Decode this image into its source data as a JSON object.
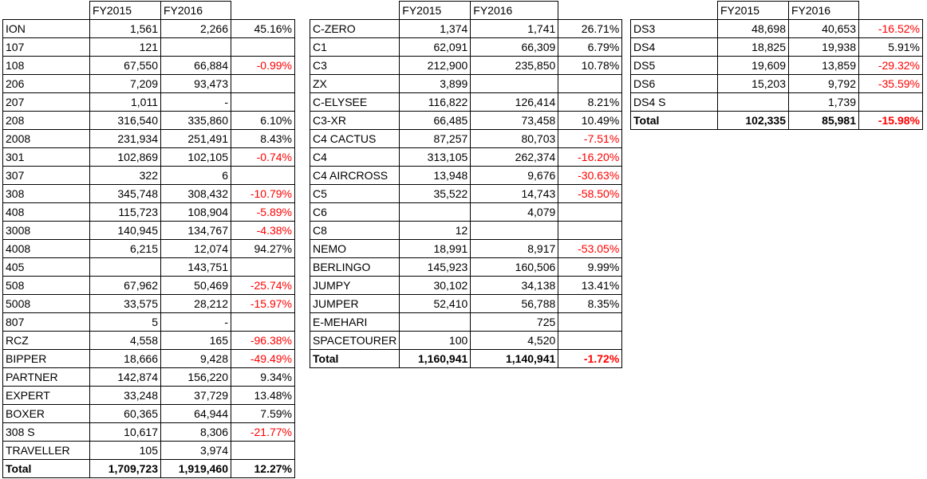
{
  "colors": {
    "negative": "#ff0000",
    "text": "#000000",
    "border": "#000000"
  },
  "headers": {
    "fy2015": "FY2015",
    "fy2016": "FY2016"
  },
  "peugeot": {
    "rows": [
      {
        "model": "ION",
        "fy2015": "1,561",
        "fy2016": "2,266",
        "change": "45.16%",
        "neg": false
      },
      {
        "model": "107",
        "fy2015": "121",
        "fy2016": "",
        "change": "",
        "neg": false
      },
      {
        "model": "108",
        "fy2015": "67,550",
        "fy2016": "66,884",
        "change": "-0.99%",
        "neg": true
      },
      {
        "model": "206",
        "fy2015": "7,209",
        "fy2016": "93,473",
        "change": "",
        "neg": false
      },
      {
        "model": "207",
        "fy2015": "1,011",
        "fy2016": "-",
        "change": "",
        "neg": false
      },
      {
        "model": "208",
        "fy2015": "316,540",
        "fy2016": "335,860",
        "change": "6.10%",
        "neg": false
      },
      {
        "model": "2008",
        "fy2015": "231,934",
        "fy2016": "251,491",
        "change": "8.43%",
        "neg": false
      },
      {
        "model": "301",
        "fy2015": "102,869",
        "fy2016": "102,105",
        "change": "-0.74%",
        "neg": true
      },
      {
        "model": "307",
        "fy2015": "322",
        "fy2016": "6",
        "change": "",
        "neg": false
      },
      {
        "model": "308",
        "fy2015": "345,748",
        "fy2016": "308,432",
        "change": "-10.79%",
        "neg": true
      },
      {
        "model": "408",
        "fy2015": "115,723",
        "fy2016": "108,904",
        "change": "-5.89%",
        "neg": true
      },
      {
        "model": "3008",
        "fy2015": "140,945",
        "fy2016": "134,767",
        "change": "-4.38%",
        "neg": true
      },
      {
        "model": "4008",
        "fy2015": "6,215",
        "fy2016": "12,074",
        "change": "94.27%",
        "neg": false
      },
      {
        "model": "405",
        "fy2015": "",
        "fy2016": "143,751",
        "change": "",
        "neg": false
      },
      {
        "model": "508",
        "fy2015": "67,962",
        "fy2016": "50,469",
        "change": "-25.74%",
        "neg": true
      },
      {
        "model": "5008",
        "fy2015": "33,575",
        "fy2016": "28,212",
        "change": "-15.97%",
        "neg": true
      },
      {
        "model": "807",
        "fy2015": "5",
        "fy2016": "-",
        "change": "",
        "neg": false
      },
      {
        "model": "RCZ",
        "fy2015": "4,558",
        "fy2016": "165",
        "change": "-96.38%",
        "neg": true
      },
      {
        "model": "BIPPER",
        "fy2015": "18,666",
        "fy2016": "9,428",
        "change": "-49.49%",
        "neg": true
      },
      {
        "model": "PARTNER",
        "fy2015": "142,874",
        "fy2016": "156,220",
        "change": "9.34%",
        "neg": false
      },
      {
        "model": "EXPERT",
        "fy2015": "33,248",
        "fy2016": "37,729",
        "change": "13.48%",
        "neg": false
      },
      {
        "model": "BOXER",
        "fy2015": "60,365",
        "fy2016": "64,944",
        "change": "7.59%",
        "neg": false
      },
      {
        "model": "308 S",
        "fy2015": "10,617",
        "fy2016": "8,306",
        "change": "-21.77%",
        "neg": true
      },
      {
        "model": "TRAVELLER",
        "fy2015": "105",
        "fy2016": "3,974",
        "change": "",
        "neg": false
      }
    ],
    "total": {
      "model": "Total",
      "fy2015": "1,709,723",
      "fy2016": "1,919,460",
      "change": "12.27%",
      "neg": false
    }
  },
  "citroen": {
    "rows": [
      {
        "model": "C-ZERO",
        "fy2015": "1,374",
        "fy2016": "1,741",
        "change": "26.71%",
        "neg": false
      },
      {
        "model": "C1",
        "fy2015": "62,091",
        "fy2016": "66,309",
        "change": "6.79%",
        "neg": false
      },
      {
        "model": "C3",
        "fy2015": "212,900",
        "fy2016": "235,850",
        "change": "10.78%",
        "neg": false
      },
      {
        "model": "ZX",
        "fy2015": "3,899",
        "fy2016": "",
        "change": "",
        "neg": false
      },
      {
        "model": "C-ELYSEE",
        "fy2015": "116,822",
        "fy2016": "126,414",
        "change": "8.21%",
        "neg": false
      },
      {
        "model": "C3-XR",
        "fy2015": "66,485",
        "fy2016": "73,458",
        "change": "10.49%",
        "neg": false
      },
      {
        "model": "C4 CACTUS",
        "fy2015": "87,257",
        "fy2016": "80,703",
        "change": "-7.51%",
        "neg": true
      },
      {
        "model": "C4",
        "fy2015": "313,105",
        "fy2016": "262,374",
        "change": "-16.20%",
        "neg": true
      },
      {
        "model": "C4 AIRCROSS",
        "fy2015": "13,948",
        "fy2016": "9,676",
        "change": "-30.63%",
        "neg": true
      },
      {
        "model": "C5",
        "fy2015": "35,522",
        "fy2016": "14,743",
        "change": "-58.50%",
        "neg": true
      },
      {
        "model": "C6",
        "fy2015": "",
        "fy2016": "4,079",
        "change": "",
        "neg": false
      },
      {
        "model": "C8",
        "fy2015": "12",
        "fy2016": "",
        "change": "",
        "neg": false
      },
      {
        "model": "NEMO",
        "fy2015": "18,991",
        "fy2016": "8,917",
        "change": "-53.05%",
        "neg": true
      },
      {
        "model": "BERLINGO",
        "fy2015": "145,923",
        "fy2016": "160,506",
        "change": "9.99%",
        "neg": false
      },
      {
        "model": "JUMPY",
        "fy2015": "30,102",
        "fy2016": "34,138",
        "change": "13.41%",
        "neg": false
      },
      {
        "model": "JUMPER",
        "fy2015": "52,410",
        "fy2016": "56,788",
        "change": "8.35%",
        "neg": false
      },
      {
        "model": "E-MEHARI",
        "fy2015": "",
        "fy2016": "725",
        "change": "",
        "neg": false
      },
      {
        "model": "SPACETOURER",
        "fy2015": "100",
        "fy2016": "4,520",
        "change": "",
        "neg": false
      }
    ],
    "total": {
      "model": "Total",
      "fy2015": "1,160,941",
      "fy2016": "1,140,941",
      "change": "-1.72%",
      "neg": true
    }
  },
  "ds": {
    "rows": [
      {
        "model": "DS3",
        "fy2015": "48,698",
        "fy2016": "40,653",
        "change": "-16.52%",
        "neg": true
      },
      {
        "model": "DS4",
        "fy2015": "18,825",
        "fy2016": "19,938",
        "change": "5.91%",
        "neg": false
      },
      {
        "model": "DS5",
        "fy2015": "19,609",
        "fy2016": "13,859",
        "change": "-29.32%",
        "neg": true
      },
      {
        "model": "DS6",
        "fy2015": "15,203",
        "fy2016": "9,792",
        "change": "-35.59%",
        "neg": true
      },
      {
        "model": "DS4 S",
        "fy2015": "",
        "fy2016": "1,739",
        "change": "",
        "neg": false
      }
    ],
    "total": {
      "model": "Total",
      "fy2015": "102,335",
      "fy2016": "85,981",
      "change": "-15.98%",
      "neg": true
    }
  }
}
